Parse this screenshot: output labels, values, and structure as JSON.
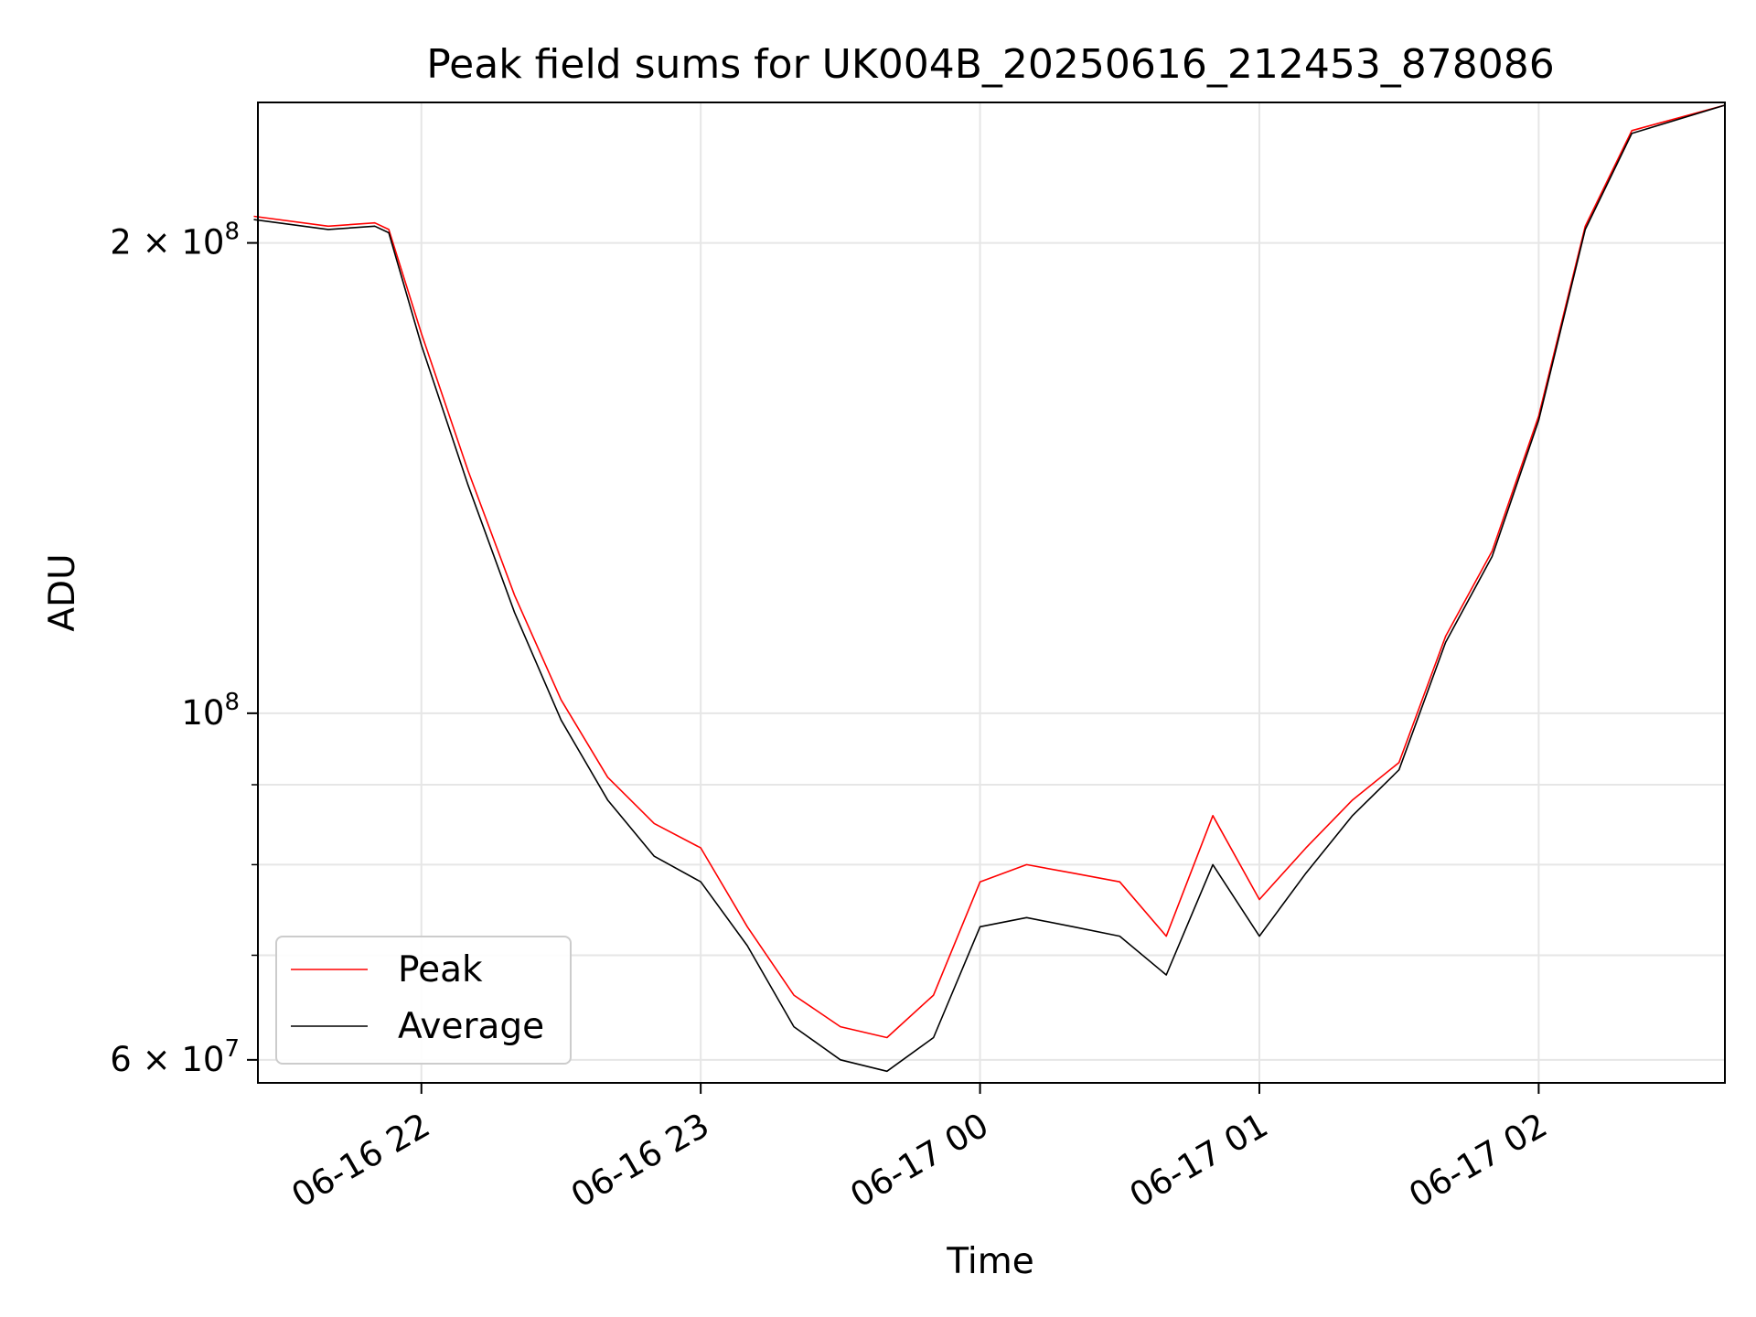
{
  "chart_data": {
    "type": "line",
    "title": "Peak field sums for UK004B_20250616_212453_878086",
    "xlabel": "Time",
    "ylabel": "ADU",
    "yscale": "log",
    "ylim": [
      58000000,
      246000000
    ],
    "xlim": [
      "2025-06-16 21:24:53",
      "2025-06-17 02:40:00"
    ],
    "grid": true,
    "legend_position": "lower-left",
    "x_ticks": [
      {
        "time": "2025-06-16 22:00",
        "label": "06-16 22"
      },
      {
        "time": "2025-06-16 23:00",
        "label": "06-16 23"
      },
      {
        "time": "2025-06-17 00:00",
        "label": "06-17 00"
      },
      {
        "time": "2025-06-17 01:00",
        "label": "06-17 01"
      },
      {
        "time": "2025-06-17 02:00",
        "label": "06-17 02"
      }
    ],
    "y_major_ticks": [
      {
        "value": 60000000,
        "base": "6 × 10",
        "exp": "7"
      },
      {
        "value": 100000000,
        "base": "10",
        "exp": "8"
      },
      {
        "value": 200000000,
        "base": "2 × 10",
        "exp": "8"
      }
    ],
    "y_minor_gridlines": [
      70000000,
      80000000,
      90000000
    ],
    "series": [
      {
        "name": "Peak",
        "color": "#ff0000",
        "x": [
          "2025-06-16 21:24",
          "2025-06-16 21:40",
          "2025-06-16 21:50",
          "2025-06-16 21:53",
          "2025-06-16 22:00",
          "2025-06-16 22:10",
          "2025-06-16 22:20",
          "2025-06-16 22:30",
          "2025-06-16 22:40",
          "2025-06-16 22:50",
          "2025-06-16 23:00",
          "2025-06-16 23:10",
          "2025-06-16 23:20",
          "2025-06-16 23:30",
          "2025-06-16 23:40",
          "2025-06-16 23:50",
          "2025-06-17 00:00",
          "2025-06-17 00:10",
          "2025-06-17 00:20",
          "2025-06-17 00:30",
          "2025-06-17 00:40",
          "2025-06-17 00:50",
          "2025-06-17 01:00",
          "2025-06-17 01:10",
          "2025-06-17 01:20",
          "2025-06-17 01:30",
          "2025-06-17 01:40",
          "2025-06-17 01:50",
          "2025-06-17 02:00",
          "2025-06-17 02:10",
          "2025-06-17 02:20",
          "2025-06-17 02:40"
        ],
        "y": [
          208000000,
          205000000,
          206000000,
          204000000,
          175000000,
          143000000,
          119000000,
          102000000,
          91000000,
          85000000,
          82000000,
          73000000,
          66000000,
          63000000,
          62000000,
          66000000,
          78000000,
          80000000,
          79000000,
          78000000,
          72000000,
          86000000,
          76000000,
          82000000,
          88000000,
          93000000,
          112000000,
          127000000,
          155000000,
          205000000,
          236000000,
          245000000
        ]
      },
      {
        "name": "Average",
        "color": "#000000",
        "x": [
          "2025-06-16 21:24",
          "2025-06-16 21:40",
          "2025-06-16 21:50",
          "2025-06-16 21:53",
          "2025-06-16 22:00",
          "2025-06-16 22:10",
          "2025-06-16 22:20",
          "2025-06-16 22:30",
          "2025-06-16 22:40",
          "2025-06-16 22:50",
          "2025-06-16 23:00",
          "2025-06-16 23:10",
          "2025-06-16 23:20",
          "2025-06-16 23:30",
          "2025-06-16 23:40",
          "2025-06-16 23:50",
          "2025-06-17 00:00",
          "2025-06-17 00:10",
          "2025-06-17 00:20",
          "2025-06-17 00:30",
          "2025-06-17 00:40",
          "2025-06-17 00:50",
          "2025-06-17 01:00",
          "2025-06-17 01:10",
          "2025-06-17 01:20",
          "2025-06-17 01:30",
          "2025-06-17 01:40",
          "2025-06-17 01:50",
          "2025-06-17 02:00",
          "2025-06-17 02:10",
          "2025-06-17 02:20",
          "2025-06-17 02:40"
        ],
        "y": [
          207000000,
          204000000,
          205000000,
          203000000,
          172000000,
          140000000,
          116000000,
          99000000,
          88000000,
          81000000,
          78000000,
          71000000,
          63000000,
          60000000,
          59000000,
          62000000,
          73000000,
          74000000,
          73000000,
          72000000,
          68000000,
          80000000,
          72000000,
          79000000,
          86000000,
          92000000,
          111000000,
          126000000,
          154000000,
          204000000,
          235000000,
          245000000
        ]
      }
    ]
  }
}
